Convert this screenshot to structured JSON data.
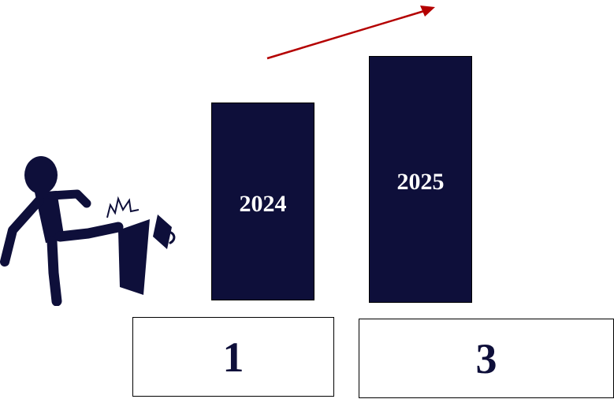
{
  "colors": {
    "bar_fill": "#0e0f3a",
    "arrow": "#b40000",
    "text_light": "#ffffff",
    "text_dark": "#0e0f3a"
  },
  "bars": [
    {
      "label": "2024"
    },
    {
      "label": "2025"
    }
  ],
  "boxes": [
    {
      "value": "1"
    },
    {
      "value": "3"
    }
  ],
  "icons": {
    "figure": "person-kicking-trash-can-icon",
    "arrow": "upward-trend-arrow-icon"
  }
}
